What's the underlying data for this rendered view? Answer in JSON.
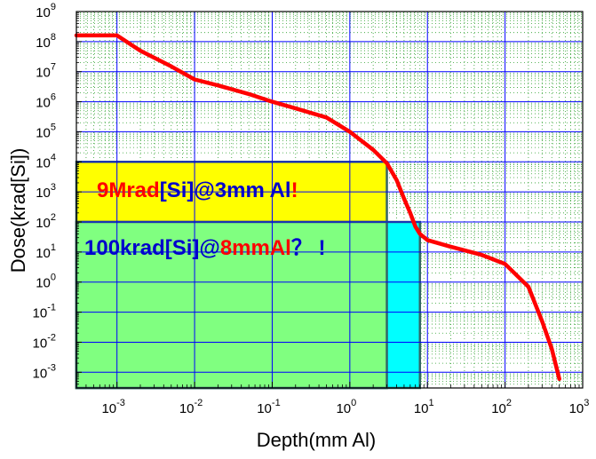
{
  "chart_data": {
    "type": "line",
    "xlabel": "Depth(mm Al)",
    "ylabel": "Dose(krad[Si])",
    "x_scale": "log",
    "y_scale": "log",
    "xlim": [
      0.0003,
      1000
    ],
    "ylim": [
      0.0003,
      1000000000
    ],
    "x_ticks": [
      {
        "value": 0.001,
        "base": "10",
        "exp": "-3"
      },
      {
        "value": 0.01,
        "base": "10",
        "exp": "-2"
      },
      {
        "value": 0.1,
        "base": "10",
        "exp": "-1"
      },
      {
        "value": 1,
        "base": "10",
        "exp": "0"
      },
      {
        "value": 10,
        "base": "10",
        "exp": "1"
      },
      {
        "value": 100,
        "base": "10",
        "exp": "2"
      },
      {
        "value": 1000,
        "base": "10",
        "exp": "3"
      }
    ],
    "y_ticks": [
      {
        "value": 0.001,
        "base": "10",
        "exp": "-3"
      },
      {
        "value": 0.01,
        "base": "10",
        "exp": "-2"
      },
      {
        "value": 0.1,
        "base": "10",
        "exp": "-1"
      },
      {
        "value": 1,
        "base": "10",
        "exp": "0"
      },
      {
        "value": 10,
        "base": "10",
        "exp": "1"
      },
      {
        "value": 100,
        "base": "10",
        "exp": "2"
      },
      {
        "value": 1000,
        "base": "10",
        "exp": "3"
      },
      {
        "value": 10000,
        "base": "10",
        "exp": "4"
      },
      {
        "value": 100000,
        "base": "10",
        "exp": "5"
      },
      {
        "value": 1000000,
        "base": "10",
        "exp": "6"
      },
      {
        "value": 10000000,
        "base": "10",
        "exp": "7"
      },
      {
        "value": 100000000,
        "base": "10",
        "exp": "8"
      },
      {
        "value": 1000000000,
        "base": "10",
        "exp": "9"
      }
    ],
    "grid": {
      "major": true,
      "minor": "dotted"
    },
    "series": [
      {
        "color": "#ff0000",
        "points": [
          [
            0.0003,
            160000000
          ],
          [
            0.001,
            160000000
          ],
          [
            0.002,
            50000000
          ],
          [
            0.005,
            15000000
          ],
          [
            0.01,
            5500000
          ],
          [
            0.02,
            3500000
          ],
          [
            0.05,
            1800000
          ],
          [
            0.1,
            1000000
          ],
          [
            0.2,
            600000
          ],
          [
            0.5,
            300000
          ],
          [
            1,
            100000
          ],
          [
            2,
            25000
          ],
          [
            3,
            9000
          ],
          [
            4,
            2500
          ],
          [
            5,
            600
          ],
          [
            6,
            200
          ],
          [
            7,
            70
          ],
          [
            8,
            40
          ],
          [
            10,
            25
          ],
          [
            20,
            15
          ],
          [
            50,
            8
          ],
          [
            100,
            4
          ],
          [
            200,
            0.7
          ],
          [
            300,
            0.05
          ],
          [
            400,
            0.006
          ],
          [
            500,
            0.0006
          ]
        ]
      }
    ],
    "highlight_boxes": [
      {
        "x0": 0.0003,
        "x1": 3,
        "y0": 0.0003,
        "y1": 10000,
        "fill": "#ffff00"
      },
      {
        "x0": 0.0003,
        "x1": 8,
        "y0": 0.0003,
        "y1": 100,
        "fill": "#00ffff"
      },
      {
        "x0": 0.0003,
        "x1": 3,
        "y0": 0.0003,
        "y1": 100,
        "fill": "#80ff80"
      }
    ],
    "annotations": [
      {
        "name": "annotation-9mrad",
        "parts": [
          {
            "text": "9Mrad",
            "color": "#ff0000"
          },
          {
            "text": "[Si]@3mm Al",
            "color": "#0000cc"
          },
          {
            "text": "!",
            "color": "#ff0000"
          }
        ]
      },
      {
        "name": "annotation-100krad",
        "parts": [
          {
            "text": "100krad[Si]@",
            "color": "#0000cc"
          },
          {
            "text": "8mmAl",
            "color": "#ff0000"
          },
          {
            "text": "？",
            "color": "#0000cc"
          },
          {
            "text": " !",
            "color": "#0000cc"
          }
        ]
      }
    ]
  }
}
